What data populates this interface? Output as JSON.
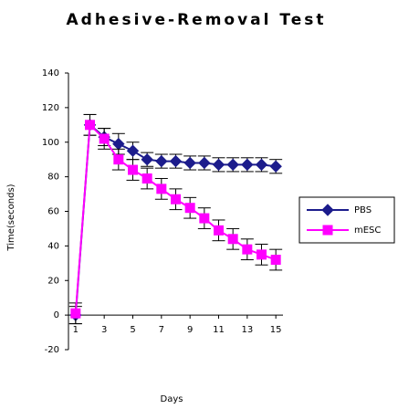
{
  "chart_data": {
    "type": "line",
    "title": "Adhesive-Removal Test",
    "x_label": "Days",
    "y_label": "Time(seconds)",
    "x": [
      1,
      2,
      3,
      4,
      5,
      6,
      7,
      8,
      9,
      10,
      11,
      12,
      13,
      14,
      15
    ],
    "xlim": [
      0.5,
      15.5
    ],
    "xticks": [
      1,
      3,
      5,
      7,
      9,
      11,
      13,
      15
    ],
    "ylim": [
      -20,
      140
    ],
    "yticks": [
      -20,
      0,
      20,
      40,
      60,
      80,
      100,
      120,
      140
    ],
    "legend": "right",
    "series": [
      {
        "name": "PBS",
        "color": "#1c1c8c",
        "marker": "diamond",
        "values": [
          0,
          110,
          103,
          99,
          95,
          90,
          89,
          89,
          88,
          88,
          87,
          87,
          87,
          87,
          86
        ],
        "errors": [
          5,
          6,
          5,
          6,
          5,
          4,
          4,
          4,
          4,
          4,
          4,
          4,
          4,
          4,
          4
        ]
      },
      {
        "name": "mESC",
        "color": "#ff00ff",
        "marker": "square",
        "values": [
          1,
          110,
          102,
          90,
          84,
          79,
          73,
          67,
          62,
          56,
          49,
          44,
          38,
          35,
          32
        ],
        "errors": [
          6,
          6,
          6,
          6,
          6,
          6,
          6,
          6,
          6,
          6,
          6,
          6,
          6,
          6,
          6
        ]
      }
    ]
  }
}
